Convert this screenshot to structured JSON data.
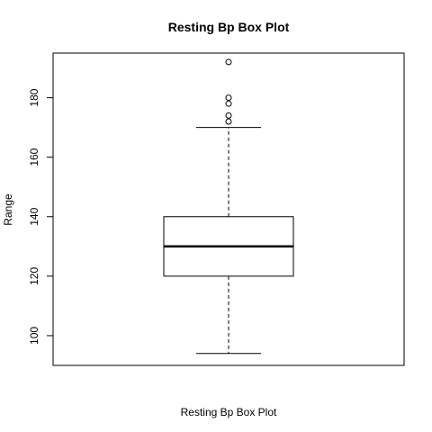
{
  "chart_data": {
    "type": "box",
    "title": "Resting Bp Box Plot",
    "xlabel": "Resting Bp Box Plot",
    "ylabel": "Range",
    "ylim": [
      90,
      195
    ],
    "yticks": [
      "100",
      "120",
      "140",
      "160",
      "180"
    ],
    "grid": false,
    "series": [
      {
        "whisker_low": 94,
        "q1": 120,
        "median": 130,
        "q3": 140,
        "whisker_high": 170,
        "outliers": [
          172,
          174,
          178,
          180,
          192
        ]
      }
    ]
  }
}
